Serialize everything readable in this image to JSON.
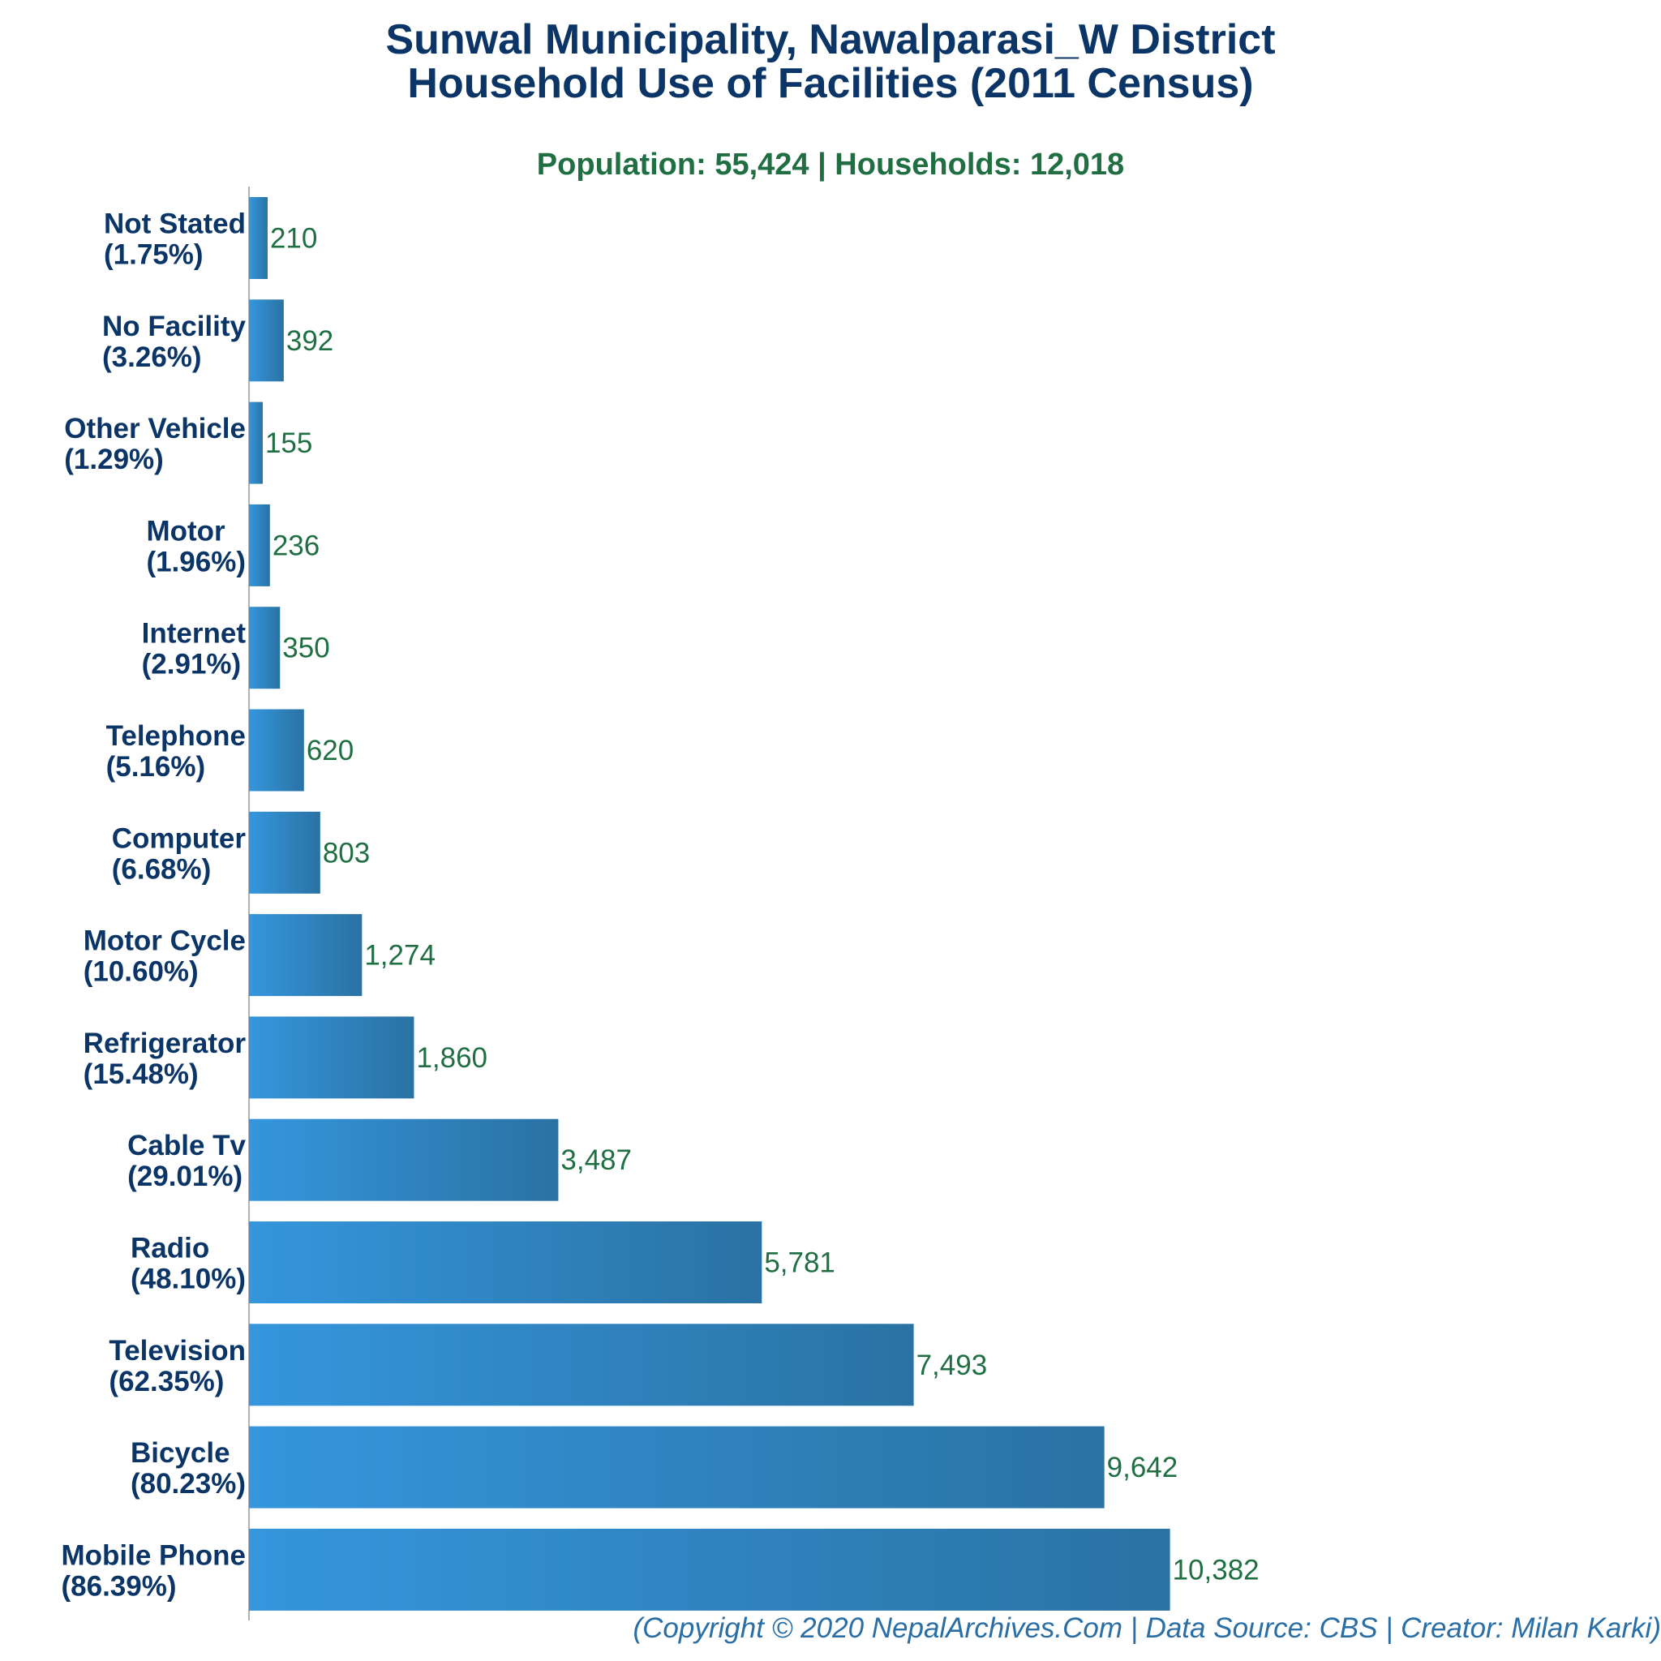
{
  "header": {
    "title_line1": "Sunwal Municipality, Nawalparasi_W District",
    "title_line2": "Household Use of Facilities (2011 Census)",
    "subtitle": "Population: 55,424 | Households: 12,018"
  },
  "footer": {
    "credit": "(Copyright © 2020 NepalArchives.Com | Data Source: CBS | Creator: Milan Karki)"
  },
  "colors": {
    "title": "#0b3566",
    "subtitle": "#1f6f43",
    "value_label": "#1f6f43",
    "bar_light": "#3596dd",
    "bar_dark": "#2a72a3",
    "axis": "#999999",
    "footer": "#2a6ea6"
  },
  "chart_data": {
    "type": "bar",
    "orientation": "horizontal",
    "title": "Sunwal Municipality, Nawalparasi_W District Household Use of Facilities (2011 Census)",
    "xlabel": "",
    "ylabel": "",
    "grid": false,
    "xlim": [
      0,
      12000
    ],
    "categories": [
      "Not Stated",
      "No Facility",
      "Other Vehicle",
      "Motor",
      "Internet",
      "Telephone",
      "Computer",
      "Motor Cycle",
      "Refrigerator",
      "Cable Tv",
      "Radio",
      "Television",
      "Bicycle",
      "Mobile Phone"
    ],
    "percentages": [
      "(1.75%)",
      "(3.26%)",
      "(1.29%)",
      "(1.96%)",
      "(2.91%)",
      "(5.16%)",
      "(6.68%)",
      "(10.60%)",
      "(15.48%)",
      "(29.01%)",
      "(48.10%)",
      "(62.35%)",
      "(80.23%)",
      "(86.39%)"
    ],
    "values": [
      210,
      392,
      155,
      236,
      350,
      620,
      803,
      1274,
      1860,
      3487,
      5781,
      7493,
      9642,
      10382
    ],
    "value_labels": [
      "210",
      "392",
      "155",
      "236",
      "350",
      "620",
      "803",
      "1,274",
      "1,860",
      "3,487",
      "5,781",
      "7,493",
      "9,642",
      "10,382"
    ]
  }
}
